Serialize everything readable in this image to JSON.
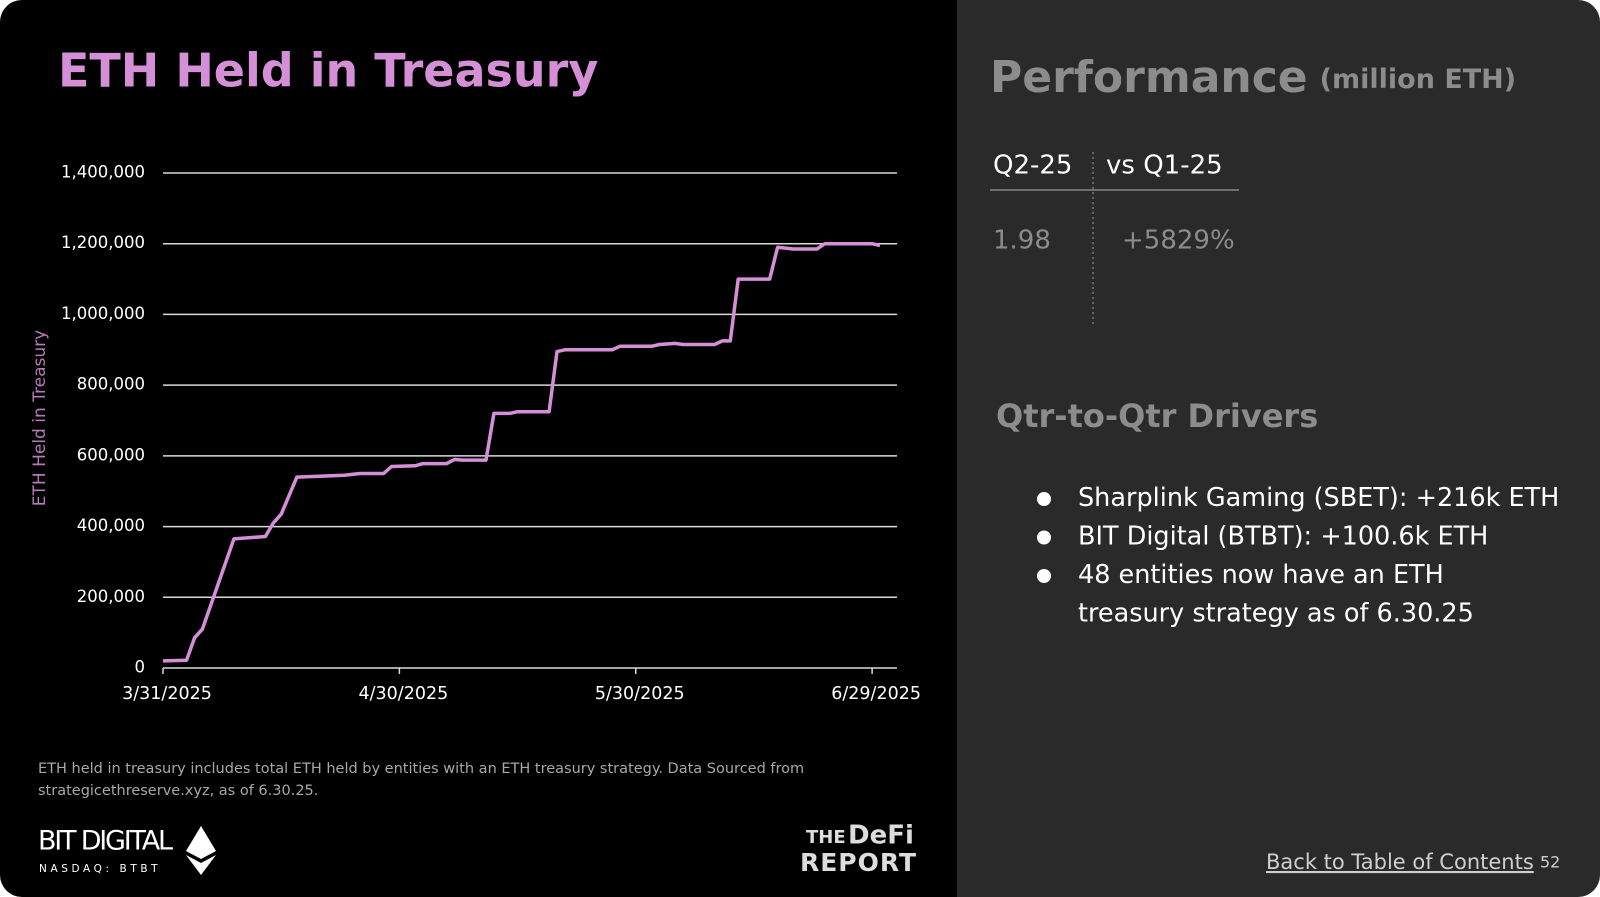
{
  "chart_data": {
    "type": "line",
    "title": "ETH Held in Treasury",
    "y_label": "ETH Held in Treasury",
    "color": "#d48fd6",
    "x": [
      "3/31/2025",
      "4/3/2025",
      "4/4/2025",
      "4/5/2025",
      "4/9/2025",
      "4/13/2025",
      "4/14/2025",
      "4/15/2025",
      "4/17/2025",
      "4/23/2025",
      "4/25/2025",
      "4/28/2025",
      "4/29/2025",
      "5/2/2025",
      "5/3/2025",
      "5/6/2025",
      "5/7/2025",
      "5/8/2025",
      "5/11/2025",
      "5/12/2025",
      "5/14/2025",
      "5/15/2025",
      "5/19/2025",
      "5/20/2025",
      "5/21/2025",
      "5/23/2025",
      "5/27/2025",
      "5/28/2025",
      "6/1/2025",
      "6/2/2025",
      "6/4/2025",
      "6/5/2025",
      "6/9/2025",
      "6/10/2025",
      "6/11/2025",
      "6/12/2025",
      "6/16/2025",
      "6/17/2025",
      "6/19/2025",
      "6/22/2025",
      "6/23/2025",
      "6/29/2025",
      "6/30/2025"
    ],
    "values": [
      20000,
      22000,
      85000,
      110000,
      365000,
      372000,
      410000,
      435000,
      540000,
      545000,
      550000,
      550000,
      570000,
      572000,
      578000,
      578000,
      590000,
      588000,
      588000,
      720000,
      720000,
      725000,
      725000,
      895000,
      900000,
      900000,
      900000,
      910000,
      910000,
      915000,
      918000,
      915000,
      915000,
      925000,
      925000,
      1100000,
      1100000,
      1190000,
      1185000,
      1185000,
      1200000,
      1200000,
      1195000
    ],
    "xlim": [
      "3/31/2025",
      "6/30/2025"
    ],
    "xticks": [
      "3/31/2025",
      "4/30/2025",
      "5/30/2025",
      "6/29/2025"
    ],
    "ylim": [
      0,
      1400000
    ],
    "yticks": [
      0,
      {
        "value": 200000,
        "label": "200,000"
      },
      {
        "value": 400000,
        "label": "400,000"
      },
      {
        "value": 600000,
        "label": "600,000"
      },
      {
        "value": 800000,
        "label": "800,000"
      },
      {
        "value": 1000000,
        "label": "1,000,000"
      },
      {
        "value": 1200000,
        "label": "1,200,000"
      },
      {
        "value": 1400000,
        "label": "1,400,000"
      }
    ],
    "grid": true
  },
  "footnote": [
    "ETH held in treasury includes total ETH held by entities with an ETH treasury strategy. Data Sourced from",
    "strategicethreserve.xyz, as of 6.30.25."
  ],
  "logos": {
    "bit_digital": "BIT DIGITAL",
    "nasdaq": "NASDAQ: BTBT",
    "defi_the": "THE",
    "defi_name": "DeFi",
    "defi_report": "REPORT"
  },
  "performance": {
    "title": "Performance",
    "unit": "(million ETH)",
    "headers": [
      "Q2-25",
      "vs Q1-25"
    ],
    "row": [
      "1.98",
      "+5829%"
    ]
  },
  "drivers": {
    "title": "Qtr-to-Qtr Drivers",
    "items": [
      [
        "Sharplink Gaming (SBET): +216k ETH"
      ],
      [
        "BIT Digital (BTBT): +100.6k ETH"
      ],
      [
        "48 entities now have an ETH",
        "treasury strategy as of 6.30.25"
      ]
    ]
  },
  "footer": {
    "link": "Back to Table of Contents",
    "page": "52"
  }
}
